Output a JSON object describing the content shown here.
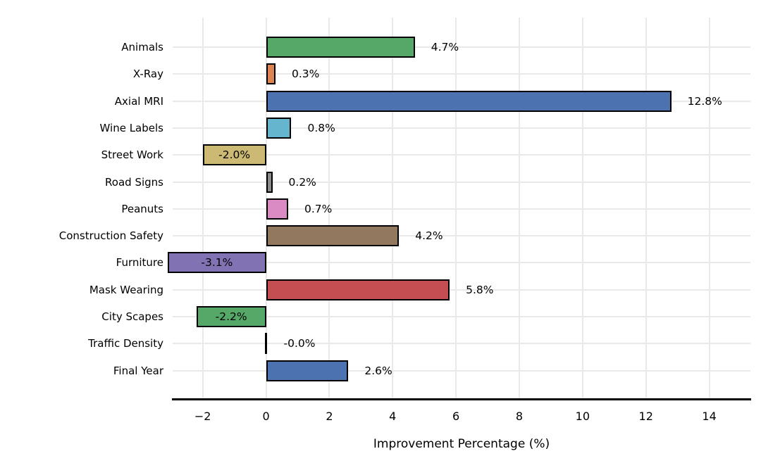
{
  "figure": {
    "background": "#ffffff",
    "text_color": "#000000"
  },
  "chart_data": {
    "type": "bar",
    "orientation": "horizontal",
    "title": "",
    "xlabel": "Improvement Percentage (%)",
    "ylabel": "",
    "categories": [
      "Animals",
      "X-Ray",
      "Axial MRI",
      "Wine Labels",
      "Street Work",
      "Road Signs",
      "Peanuts",
      "Construction Safety",
      "Furniture",
      "Mask Wearing",
      "City Scapes",
      "Traffic Density",
      "Final Year"
    ],
    "values": [
      4.7,
      0.3,
      12.8,
      0.8,
      -2.0,
      0.2,
      0.7,
      4.2,
      -3.1,
      5.8,
      -2.2,
      -0.0,
      2.6
    ],
    "value_labels": [
      "4.7%",
      "0.3%",
      "12.8%",
      "0.8%",
      "-2.0%",
      "0.2%",
      "0.7%",
      "4.2%",
      "-3.1%",
      "5.8%",
      "-2.2%",
      "-0.0%",
      "2.6%"
    ],
    "bar_colors": [
      "#55a868",
      "#dd8452",
      "#4c72b0",
      "#64b5cd",
      "#ccb974",
      "#8c8c8c",
      "#da8bc3",
      "#937860",
      "#8172b3",
      "#c44e52",
      "#55a868",
      "#000000",
      "#4c72b0"
    ],
    "bar_edge_color": "#000000",
    "xlim": [
      -2.95,
      15.3
    ],
    "xticks": [
      -2,
      0,
      2,
      4,
      6,
      8,
      10,
      12,
      14
    ],
    "xtick_labels": [
      "−2",
      "0",
      "2",
      "4",
      "6",
      "8",
      "10",
      "12",
      "14"
    ],
    "grid": true,
    "grid_color": "#e9e9e9",
    "axis_line_color": "#000000",
    "legend": "none"
  }
}
